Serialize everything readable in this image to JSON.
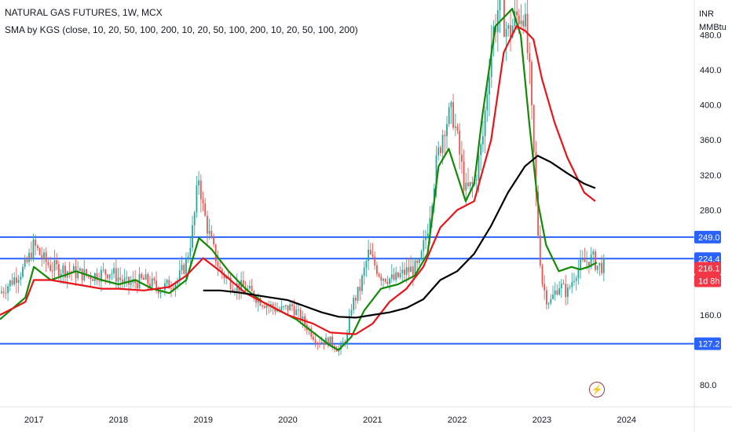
{
  "header": {
    "title": "NATURAL GAS FUTURES, 1W, MCX",
    "indicator": "SMA by KGS (close, 10, 20, 50, 100, 200, 10, 20, 50, 100, 200, 10, 20, 50, 100, 200)"
  },
  "price_axis": {
    "unit_line1": "INR",
    "unit_line2": "MMBtu",
    "ticks": [
      "480.0",
      "440.0",
      "400.0",
      "360.0",
      "320.0",
      "280.0",
      "160.0",
      "80.0"
    ],
    "tags": [
      {
        "label": "249.0",
        "color": "#2962ff"
      },
      {
        "label": "224.4",
        "color": "#2962ff"
      },
      {
        "label": "216.1",
        "color": "#f23645"
      },
      {
        "label": "1d 8h",
        "color": "#f23645"
      },
      {
        "label": "127.2",
        "color": "#2962ff"
      }
    ]
  },
  "time_axis": {
    "ticks": [
      "2017",
      "2018",
      "2019",
      "2020",
      "2021",
      "2022",
      "2023",
      "2024"
    ]
  },
  "icons": {
    "lightning": "lightning-icon"
  },
  "chart_data": {
    "type": "line",
    "title": "NATURAL GAS FUTURES, 1W, MCX",
    "xlabel": "",
    "ylabel": "",
    "ylim": [
      55,
      520
    ],
    "xlim": [
      2016.6,
      2024.8
    ],
    "horizontal_levels": [
      249.0,
      224.4,
      127.2
    ],
    "last_price": 216.1,
    "colors": {
      "up": "#26a69a",
      "down": "#ef5350",
      "level": "#2962ff",
      "sma_green": "#138a07",
      "sma_red": "#e8141a",
      "sma_black": "#000000"
    },
    "candles_close": {
      "x": [
        2016.6,
        2016.75,
        2016.9,
        2017.0,
        2017.1,
        2017.2,
        2017.35,
        2017.5,
        2017.7,
        2017.9,
        2018.1,
        2018.3,
        2018.5,
        2018.7,
        2018.8,
        2018.88,
        2018.95,
        2019.0,
        2019.1,
        2019.2,
        2019.35,
        2019.5,
        2019.7,
        2019.9,
        2020.05,
        2020.2,
        2020.35,
        2020.5,
        2020.6,
        2020.7,
        2020.75,
        2020.85,
        2020.95,
        2021.1,
        2021.25,
        2021.4,
        2021.55,
        2021.65,
        2021.75,
        2021.85,
        2021.95,
        2022.1,
        2022.2,
        2022.3,
        2022.4,
        2022.5,
        2022.6,
        2022.7,
        2022.78,
        2022.85,
        2022.9,
        2022.95,
        2023.0,
        2023.05,
        2023.1,
        2023.2,
        2023.3,
        2023.4,
        2023.5,
        2023.6,
        2023.65
      ],
      "values": [
        185,
        200,
        215,
        240,
        225,
        215,
        212,
        208,
        205,
        210,
        195,
        200,
        190,
        200,
        220,
        260,
        320,
        280,
        240,
        210,
        195,
        190,
        175,
        165,
        170,
        150,
        130,
        130,
        120,
        135,
        170,
        190,
        230,
        205,
        200,
        210,
        215,
        260,
        330,
        380,
        390,
        300,
        310,
        360,
        470,
        520,
        480,
        500,
        510,
        440,
        350,
        260,
        200,
        180,
        175,
        195,
        185,
        210,
        220,
        225,
        216.1
      ]
    },
    "series": [
      {
        "name": "",
        "color": "#138a07",
        "x": [
          2016.6,
          2016.9,
          2017.0,
          2017.2,
          2017.5,
          2017.8,
          2018.0,
          2018.2,
          2018.4,
          2018.6,
          2018.8,
          2018.95,
          2019.1,
          2019.3,
          2019.5,
          2019.7,
          2019.9,
          2020.1,
          2020.3,
          2020.5,
          2020.6,
          2020.75,
          2020.9,
          2021.1,
          2021.3,
          2021.5,
          2021.65,
          2021.78,
          2021.9,
          2022.0,
          2022.1,
          2022.2,
          2022.3,
          2022.45,
          2022.55,
          2022.65,
          2022.75,
          2022.85,
          2022.95,
          2023.05,
          2023.2,
          2023.35,
          2023.45,
          2023.55,
          2023.65
        ],
        "values": [
          155,
          180,
          215,
          200,
          210,
          200,
          195,
          200,
          190,
          185,
          200,
          248,
          235,
          210,
          190,
          175,
          165,
          155,
          140,
          125,
          120,
          135,
          165,
          190,
          195,
          205,
          230,
          330,
          350,
          320,
          290,
          310,
          390,
          490,
          500,
          510,
          480,
          380,
          290,
          240,
          210,
          215,
          212,
          215,
          220
        ]
      },
      {
        "name": "",
        "color": "#e8141a",
        "x": [
          2016.6,
          2016.9,
          2017.0,
          2017.2,
          2017.5,
          2017.8,
          2018.0,
          2018.3,
          2018.6,
          2018.8,
          2019.0,
          2019.2,
          2019.5,
          2019.8,
          2020.0,
          2020.3,
          2020.5,
          2020.8,
          2021.0,
          2021.2,
          2021.4,
          2021.6,
          2021.8,
          2022.0,
          2022.2,
          2022.4,
          2022.55,
          2022.7,
          2022.8,
          2022.9,
          2023.0,
          2023.15,
          2023.3,
          2023.5,
          2023.63
        ],
        "values": [
          160,
          175,
          200,
          200,
          195,
          190,
          190,
          188,
          192,
          205,
          225,
          210,
          185,
          170,
          160,
          150,
          140,
          138,
          150,
          175,
          190,
          215,
          260,
          280,
          290,
          360,
          460,
          490,
          485,
          475,
          430,
          380,
          340,
          300,
          290
        ]
      },
      {
        "name": "",
        "color": "#000000",
        "x": [
          2019.0,
          2019.2,
          2019.4,
          2019.6,
          2019.8,
          2020.0,
          2020.2,
          2020.4,
          2020.6,
          2020.8,
          2021.0,
          2021.2,
          2021.4,
          2021.6,
          2021.8,
          2022.0,
          2022.2,
          2022.4,
          2022.6,
          2022.8,
          2022.95,
          2023.1,
          2023.3,
          2023.5,
          2023.63
        ],
        "values": [
          188,
          188,
          186,
          183,
          180,
          177,
          170,
          163,
          158,
          157,
          160,
          163,
          168,
          178,
          200,
          210,
          230,
          262,
          300,
          330,
          342,
          335,
          322,
          310,
          305
        ]
      }
    ]
  }
}
